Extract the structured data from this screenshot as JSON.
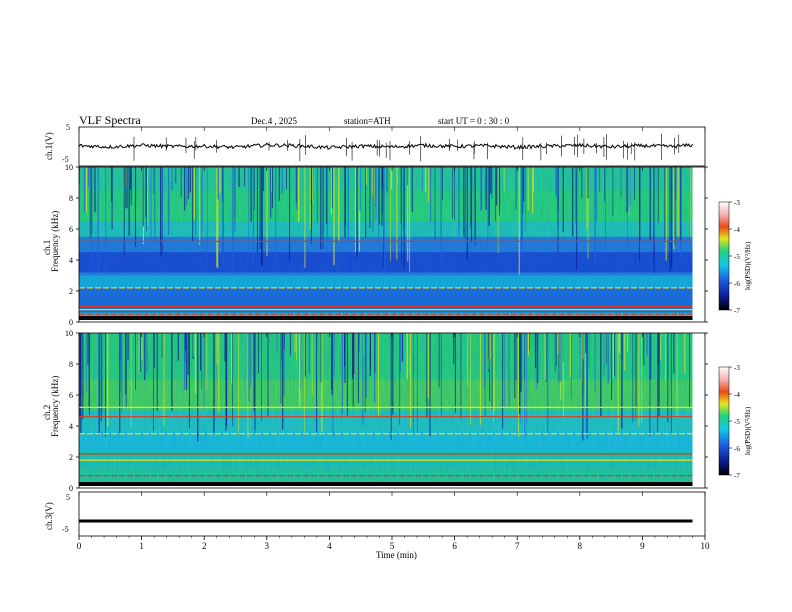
{
  "header": {
    "title": "VLF  Spectra",
    "date": "Dec.4  , 2025",
    "station": "station=ATH",
    "start_ut": "start  UT  =   0 : 30 : 0"
  },
  "panels": {
    "ch1_wave": {
      "ylabel": "ch.1(V)",
      "ticks": [
        "5",
        "-5"
      ]
    },
    "ch1_spec": {
      "ylabel_ch": "ch.1",
      "ylabel_freq": "Frequency  (kHz)",
      "ticks": [
        "10",
        "8",
        "6",
        "4",
        "2",
        "0"
      ]
    },
    "ch2_spec": {
      "ylabel_ch": "ch.2",
      "ylabel_freq": "Frequency  (kHz)",
      "ticks": [
        "10",
        "8",
        "6",
        "4",
        "2",
        "0"
      ]
    },
    "ch3_wave": {
      "ylabel": "ch.3(V)",
      "ticks": [
        "5",
        "-5"
      ]
    }
  },
  "colorbar1": {
    "label": "log(PSD)(V²/Hz)",
    "ticks": [
      "-3",
      "-4",
      "-5",
      "-6",
      "-7"
    ]
  },
  "colorbar2": {
    "label": "log(PSD)(V²/Hz)",
    "ticks": [
      "-3",
      "-4",
      "-5",
      "-6",
      "-7"
    ]
  },
  "colors": {
    "spectrogram_base": "#22d4a0",
    "spectrogram_low": "#1a4bd8",
    "line_red": "#d83a1a",
    "line_yellow": "#e8e020",
    "wave": "#000000"
  },
  "chart_data": [
    {
      "type": "line",
      "name": "ch1-waveform",
      "ylabel": "ch.1(V)",
      "ylim": [
        -5,
        5
      ],
      "xlim": [
        0,
        10
      ],
      "x": [
        0,
        0.5,
        1,
        1.5,
        2,
        2.5,
        3,
        3.5,
        4,
        4.5,
        5,
        5.5,
        6,
        6.5,
        7,
        7.5,
        8,
        8.5,
        9,
        9.5,
        9.8
      ],
      "y": [
        0.2,
        -0.1,
        0.3,
        0.0,
        0.1,
        -0.2,
        0.4,
        0.2,
        -0.3,
        0.1,
        -0.1,
        0.3,
        0.0,
        0.2,
        -0.2,
        0.1,
        0.3,
        -0.1,
        0.2,
        0.0,
        0.4
      ]
    },
    {
      "type": "heatmap",
      "name": "ch1-spectrogram",
      "xlabel": "Time  (min)",
      "ylabel": "Frequency  (kHz)",
      "xlim": [
        0,
        10
      ],
      "ylim": [
        0,
        10
      ],
      "colorbar": {
        "label": "log(PSD)(V²/Hz)",
        "range": [
          -7,
          -3
        ]
      },
      "narrowband_kHz": [
        0.5,
        0.8,
        1.0,
        2.2,
        5.2
      ]
    },
    {
      "type": "heatmap",
      "name": "ch2-spectrogram",
      "xlabel": "Time  (min)",
      "ylabel": "Frequency  (kHz)",
      "xlim": [
        0,
        10
      ],
      "ylim": [
        0,
        10
      ],
      "colorbar": {
        "label": "log(PSD)(V²/Hz)",
        "range": [
          -7,
          -3
        ]
      },
      "narrowband_kHz": [
        0.8,
        1.8,
        2.2,
        3.5,
        4.6,
        5.2
      ]
    },
    {
      "type": "line",
      "name": "ch3-waveform",
      "ylabel": "ch.3(V)",
      "ylim": [
        -5,
        5
      ],
      "xlim": [
        0,
        10
      ],
      "x": [
        0,
        9.8
      ],
      "y": [
        -1.6,
        -1.6
      ]
    }
  ],
  "xaxis": {
    "label": "Time  (min)",
    "ticks": [
      "0",
      "1",
      "2",
      "3",
      "4",
      "5",
      "6",
      "7",
      "8",
      "9",
      "10"
    ]
  }
}
